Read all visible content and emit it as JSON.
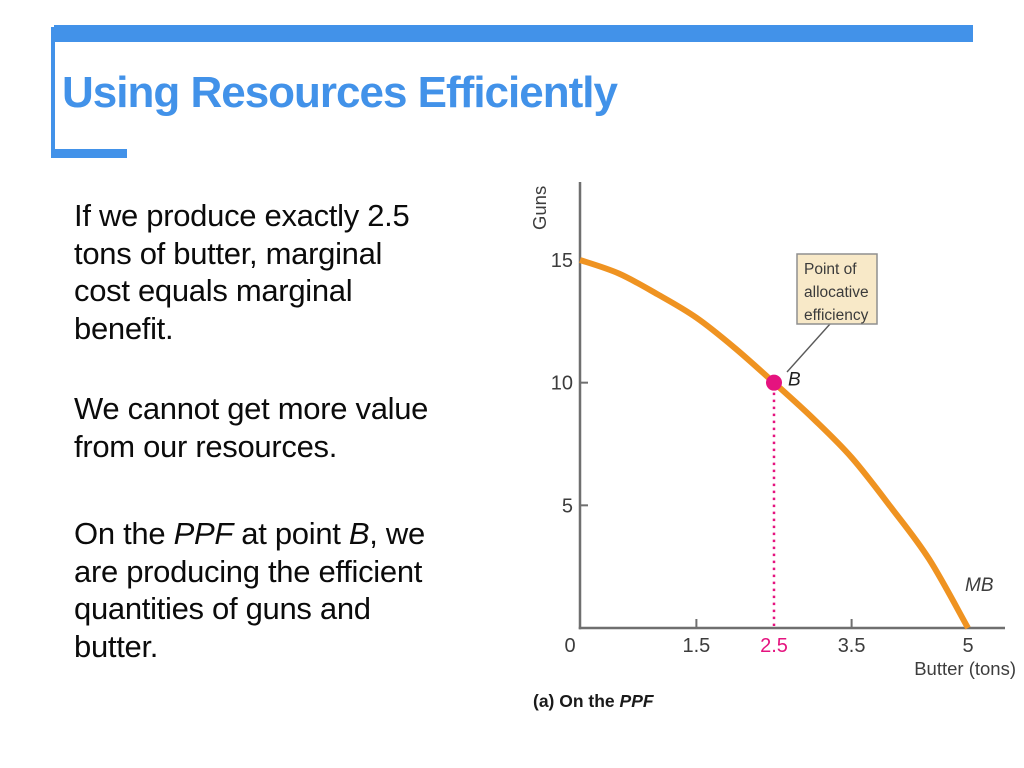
{
  "slide": {
    "title": "Using Resources Efficiently",
    "accent_color": "#4292E9",
    "paragraphs": {
      "p1": "If we produce exactly 2.5\ntons of butter, marginal\ncost equals marginal\nbenefit.",
      "p2": "We cannot get more value\nfrom our resources.",
      "p3_segments": [
        {
          "t": "On the "
        },
        {
          "t": "PPF",
          "i": true
        },
        {
          "t": " at point "
        },
        {
          "t": "B",
          "i": true
        },
        {
          "t": ", we\nare producing the efficient\nquantities of guns and\nbutter."
        }
      ]
    }
  },
  "chart_data": {
    "type": "line",
    "caption_text": "(a) On the PPF",
    "caption_segments": [
      {
        "t": "(a) On the ",
        "b": true
      },
      {
        "t": "PPF",
        "b": true,
        "i": true
      }
    ],
    "xlabel": "Butter (tons)",
    "ylabel": "Guns",
    "curve_label": "MB",
    "xlim": [
      0,
      5.4
    ],
    "ylim": [
      0,
      18
    ],
    "grid": false,
    "x_ticks": [
      {
        "v": 0,
        "label": "0",
        "tick_mark": false,
        "highlight": false
      },
      {
        "v": 1.5,
        "label": "1.5",
        "tick_mark": true,
        "highlight": false
      },
      {
        "v": 2.5,
        "label": "2.5",
        "tick_mark": false,
        "highlight": true
      },
      {
        "v": 3.5,
        "label": "3.5",
        "tick_mark": true,
        "highlight": false
      },
      {
        "v": 5,
        "label": "5",
        "tick_mark": false,
        "highlight": false
      }
    ],
    "y_ticks": [
      {
        "v": 5,
        "label": "5",
        "tick_mark": true
      },
      {
        "v": 10,
        "label": "10",
        "tick_mark": true
      },
      {
        "v": 15,
        "label": "15",
        "tick_mark": false
      }
    ],
    "series": [
      {
        "name": "PPF",
        "color": "#EF9321",
        "points": [
          [
            0,
            15
          ],
          [
            0.5,
            14.45
          ],
          [
            1,
            13.6
          ],
          [
            1.5,
            12.65
          ],
          [
            2,
            11.4
          ],
          [
            2.5,
            10
          ],
          [
            3,
            8.55
          ],
          [
            3.5,
            6.95
          ],
          [
            4,
            4.95
          ],
          [
            4.5,
            2.8
          ],
          [
            5,
            0
          ]
        ]
      }
    ],
    "point_B": {
      "x": 2.5,
      "y": 10,
      "label": "B"
    },
    "dropline_x": 2.5,
    "annotation": {
      "lines": [
        "Point of",
        "allocative",
        "efficiency"
      ],
      "bg": "#F8E9C8",
      "border": "#8F8F8F",
      "text_color": "#3B3B3B"
    },
    "colors": {
      "axis": "#6F6F6F",
      "tick_text": "#3D3D3D",
      "highlight": "#E5137F",
      "leader_line": "#5A5A5A"
    }
  }
}
